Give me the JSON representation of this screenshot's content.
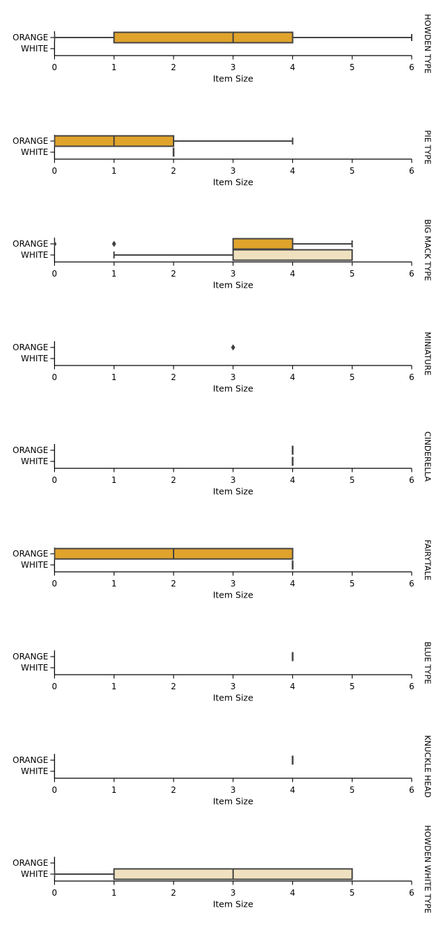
{
  "figure": {
    "background": "#ffffff"
  },
  "palette": {
    "orange_fill": "#E0A32C",
    "white_fill": "#EFE1C0",
    "box_line": "#434343",
    "outlier_fill": "#3f3f3f",
    "axis_color": "#000000",
    "text_color": "#000000"
  },
  "chart_data": {
    "type": "bar",
    "subtype": "horizontal-boxplot-grid",
    "xlabel": "Item Size",
    "xlim": [
      0,
      6
    ],
    "xticks": [
      0,
      1,
      2,
      3,
      4,
      5,
      6
    ],
    "categories": [
      "ORANGE",
      "WHITE"
    ],
    "grid": false,
    "panels": [
      {
        "title": "HOWDEN TYPE",
        "rows": [
          {
            "category": "ORANGE",
            "box": {
              "lo": 0,
              "q1": 1,
              "median": 3,
              "q3": 4,
              "hi": 6
            },
            "outliers": []
          },
          {
            "category": "WHITE",
            "box": null,
            "outliers": []
          }
        ]
      },
      {
        "title": "PIE TYPE",
        "rows": [
          {
            "category": "ORANGE",
            "box": {
              "lo": 0,
              "q1": 0,
              "median": 1,
              "q3": 2,
              "hi": 4
            },
            "outliers": []
          },
          {
            "category": "WHITE",
            "box": null,
            "tick": 2,
            "outliers": []
          }
        ]
      },
      {
        "title": "BIG MACK TYPE",
        "rows": [
          {
            "category": "ORANGE",
            "box": {
              "lo": 3,
              "q1": 3,
              "median": null,
              "q3": 4,
              "hi": 5
            },
            "outliers": [
              0,
              1
            ]
          },
          {
            "category": "WHITE",
            "box": {
              "lo": 1,
              "q1": 3,
              "median": null,
              "q3": 5,
              "hi": 5
            },
            "outliers": []
          }
        ]
      },
      {
        "title": "MINIATURE",
        "rows": [
          {
            "category": "ORANGE",
            "box": null,
            "outliers": [
              3
            ]
          },
          {
            "category": "WHITE",
            "box": null,
            "outliers": []
          }
        ]
      },
      {
        "title": "CINDERELLA",
        "rows": [
          {
            "category": "ORANGE",
            "box": null,
            "tick": 4,
            "outliers": []
          },
          {
            "category": "WHITE",
            "box": null,
            "tick": 4,
            "outliers": []
          }
        ]
      },
      {
        "title": "FAIRYTALE",
        "rows": [
          {
            "category": "ORANGE",
            "box": {
              "lo": 0,
              "q1": 0,
              "median": 2,
              "q3": 4,
              "hi": 4
            },
            "outliers": []
          },
          {
            "category": "WHITE",
            "box": null,
            "tick": 4,
            "outliers": []
          }
        ]
      },
      {
        "title": "BLUE TYPE",
        "rows": [
          {
            "category": "ORANGE",
            "box": null,
            "tick": 4,
            "outliers": []
          },
          {
            "category": "WHITE",
            "box": null,
            "outliers": []
          }
        ]
      },
      {
        "title": "KNUCKLE HEAD",
        "rows": [
          {
            "category": "ORANGE",
            "box": null,
            "tick": 4,
            "outliers": []
          },
          {
            "category": "WHITE",
            "box": null,
            "outliers": []
          }
        ]
      },
      {
        "title": "HOWDEN WHITE TYPE",
        "rows": [
          {
            "category": "ORANGE",
            "box": null,
            "outliers": []
          },
          {
            "category": "WHITE",
            "box": {
              "lo": 0,
              "q1": 1,
              "median": 3,
              "q3": 5,
              "hi": 5
            },
            "outliers": []
          }
        ]
      }
    ]
  }
}
